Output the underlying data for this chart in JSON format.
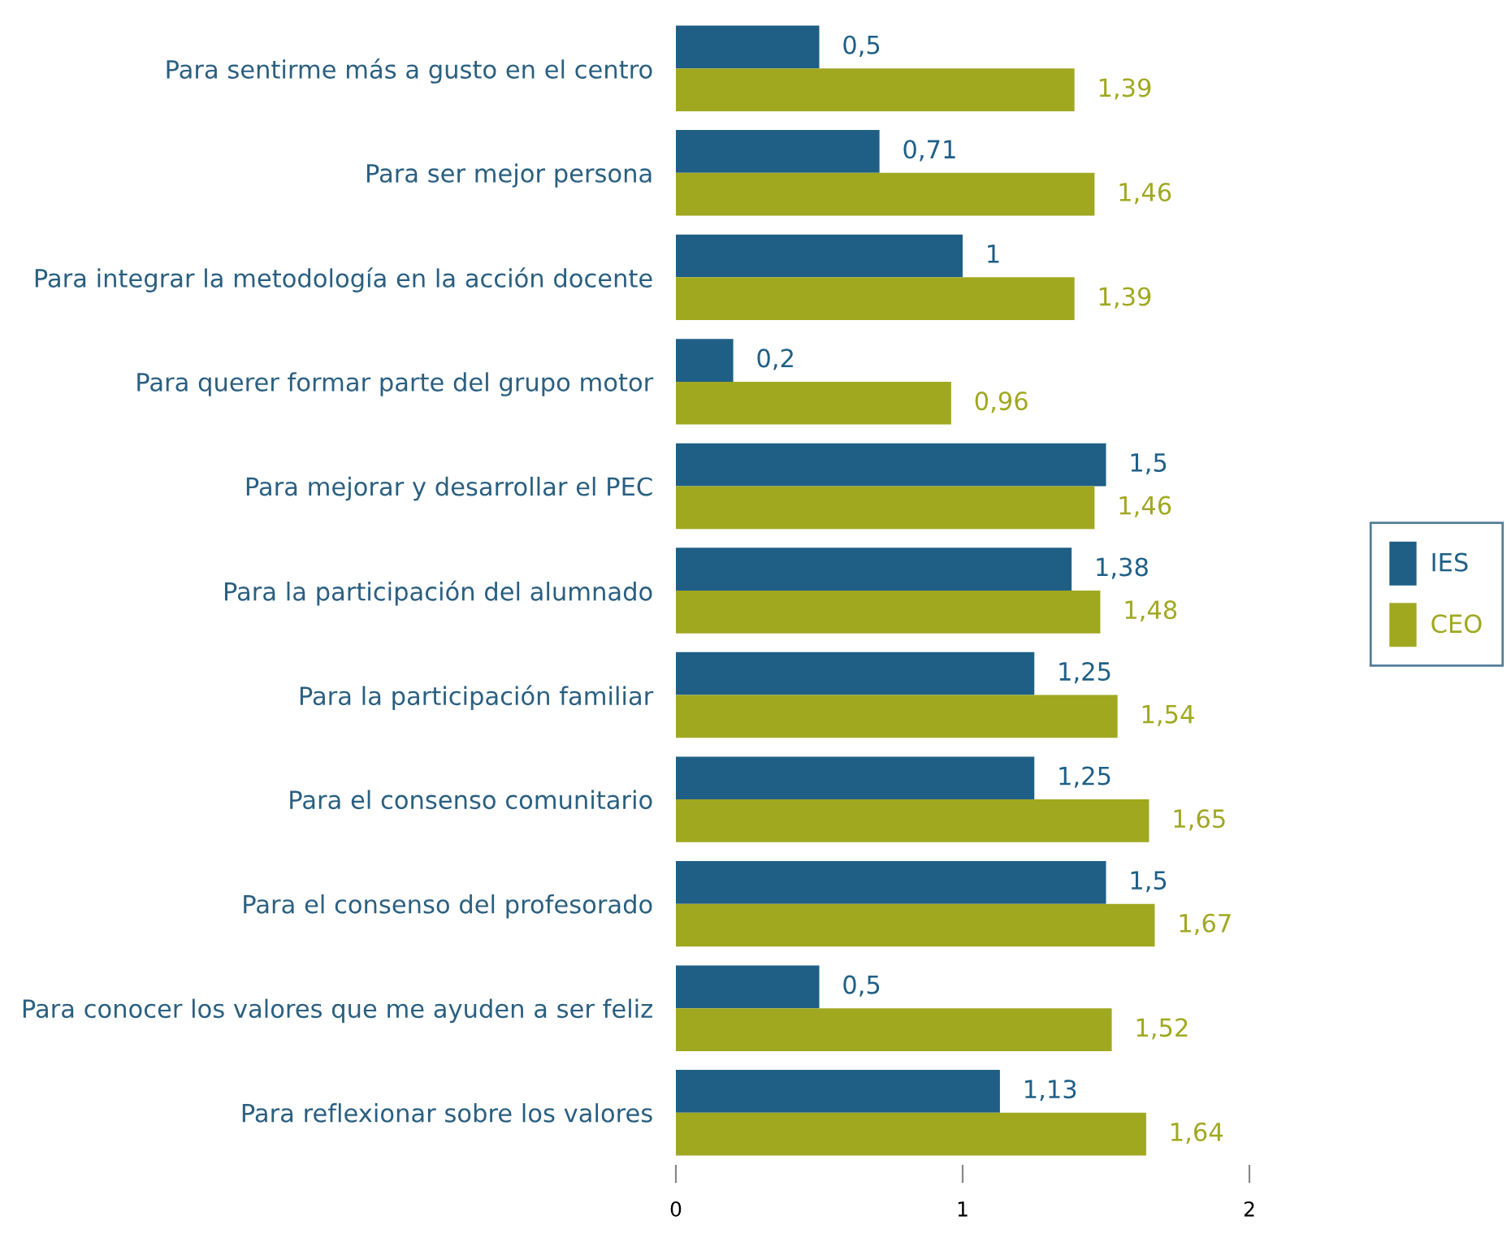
{
  "chart_data": {
    "type": "bar",
    "orientation": "horizontal",
    "categories": [
      "Para sentirme más a gusto en el centro",
      "Para ser mejor persona",
      "Para integrar la metodología en la acción docente",
      "Para querer formar parte del grupo motor",
      "Para mejorar y desarrollar el PEC",
      "Para la participación del alumnado",
      "Para la participación familiar",
      "Para el consenso comunitario",
      "Para el consenso del profesorado",
      "Para conocer los valores que me ayuden a ser feliz",
      "Para reflexionar sobre los valores"
    ],
    "series": [
      {
        "name": "IES",
        "color": "#1f5f86",
        "values": [
          0.5,
          0.71,
          1,
          0.2,
          1.5,
          1.38,
          1.25,
          1.25,
          1.5,
          0.5,
          1.13
        ],
        "value_labels": [
          "0,5",
          "0,71",
          "1",
          "0,2",
          "1,5",
          "1,38",
          "1,25",
          "1,25",
          "1,5",
          "0,5",
          "1,13"
        ]
      },
      {
        "name": "CEO",
        "color": "#a0a820",
        "values": [
          1.39,
          1.46,
          1.39,
          0.96,
          1.46,
          1.48,
          1.54,
          1.65,
          1.67,
          1.52,
          1.64
        ],
        "value_labels": [
          "1,39",
          "1,46",
          "1,39",
          "0,96",
          "1,46",
          "1,48",
          "1,54",
          "1,65",
          "1,67",
          "1,52",
          "1,64"
        ]
      }
    ],
    "xlim": [
      0,
      2
    ],
    "xticks": [
      0,
      1,
      2
    ],
    "grid": false,
    "legend": "right"
  }
}
